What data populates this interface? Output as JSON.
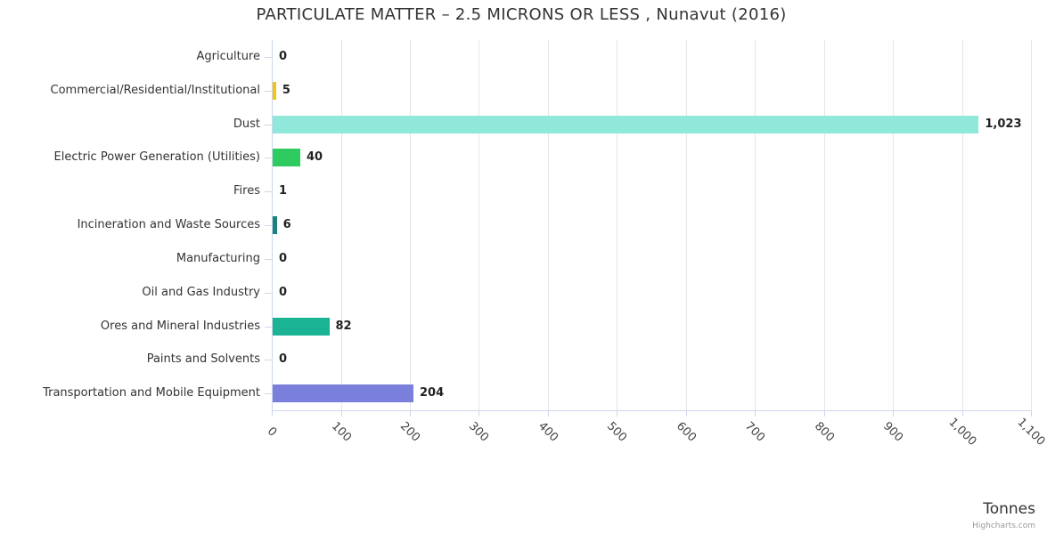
{
  "title": "PARTICULATE MATTER – 2.5 MICRONS OR LESS , Nunavut (2016)",
  "credit": "Highcharts.com",
  "chart_data": {
    "type": "bar",
    "orientation": "horizontal",
    "title": "PARTICULATE MATTER – 2.5 MICRONS OR LESS , Nunavut (2016)",
    "xlabel": "Tonnes",
    "ylabel": "",
    "categories": [
      "Agriculture",
      "Commercial/Residential/Institutional",
      "Dust",
      "Electric Power Generation (Utilities)",
      "Fires",
      "Incineration and Waste Sources",
      "Manufacturing",
      "Oil and Gas Industry",
      "Ores and Mineral Industries",
      "Paints and Solvents",
      "Transportation and Mobile Equipment"
    ],
    "values": [
      0,
      5,
      1023,
      40,
      1,
      6,
      0,
      0,
      82,
      0,
      204
    ],
    "value_labels": [
      "0",
      "5",
      "1,023",
      "40",
      "1",
      "6",
      "0",
      "0",
      "82",
      "0",
      "204"
    ],
    "bar_colors": [
      null,
      "#f0c419",
      "#90e8da",
      "#2ecc60",
      null,
      "#17827e",
      null,
      null,
      "#1ab394",
      null,
      "#7a7fdb"
    ],
    "x_ticks": [
      "0",
      "100",
      "200",
      "300",
      "400",
      "500",
      "600",
      "700",
      "800",
      "900",
      "1,000",
      "1,100"
    ],
    "xlim": [
      0,
      1100
    ],
    "tick_interval": 100,
    "x_label_rotation_deg": 45,
    "grid": true,
    "legend": false,
    "colors": {
      "axis_line": "#ccd6eb",
      "gridline": "#e6e6e6",
      "title_text": "#333333",
      "category_text": "#333333",
      "data_label_text": "#222222",
      "x_tick_text": "#444444",
      "credit_text": "#999999"
    }
  }
}
